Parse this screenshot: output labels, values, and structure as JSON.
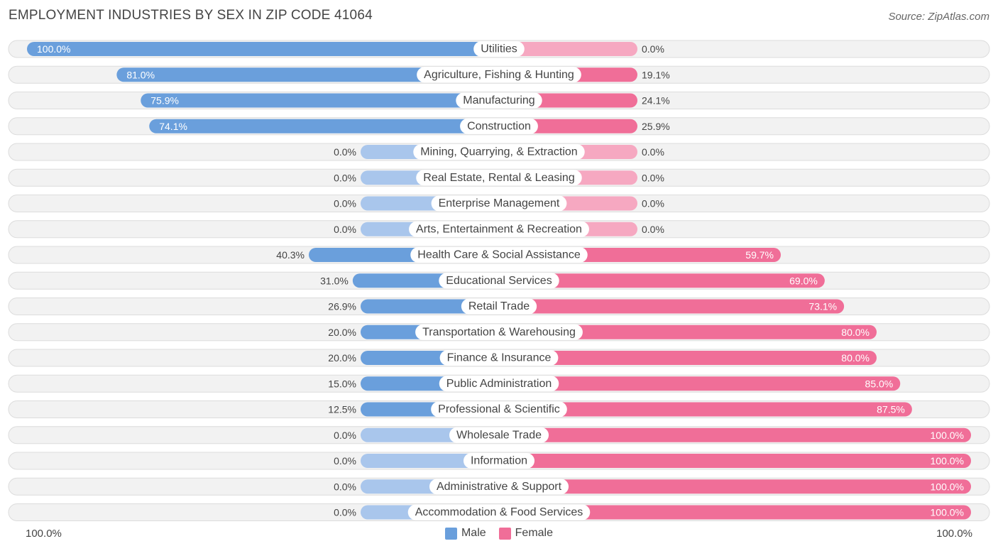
{
  "header": {
    "title": "EMPLOYMENT INDUSTRIES BY SEX IN ZIP CODE 41064",
    "source": "Source: ZipAtlas.com"
  },
  "axis": {
    "left_label": "100.0%",
    "right_label": "100.0%"
  },
  "legend": {
    "male_label": "Male",
    "female_label": "Female"
  },
  "colors": {
    "male": "#6a9fdc",
    "male_light": "#a9c6ec",
    "female": "#f06e98",
    "female_light": "#f6a8c1",
    "row_bg": "#f2f2f2",
    "row_border": "#dcdcdc"
  },
  "chart_data": {
    "type": "bar",
    "orientation": "horizontal-diverging",
    "title": "EMPLOYMENT INDUSTRIES BY SEX IN ZIP CODE 41064",
    "xlim": [
      -100,
      100
    ],
    "series": [
      {
        "name": "Male",
        "values": [
          100.0,
          81.0,
          75.9,
          74.1,
          0.0,
          0.0,
          0.0,
          0.0,
          40.3,
          31.0,
          26.9,
          20.0,
          20.0,
          15.0,
          12.5,
          0.0,
          0.0,
          0.0,
          0.0
        ]
      },
      {
        "name": "Female",
        "values": [
          0.0,
          19.1,
          24.1,
          25.9,
          0.0,
          0.0,
          0.0,
          0.0,
          59.7,
          69.0,
          73.1,
          80.0,
          80.0,
          85.0,
          87.5,
          100.0,
          100.0,
          100.0,
          100.0
        ]
      }
    ],
    "categories": [
      "Utilities",
      "Agriculture, Fishing & Hunting",
      "Manufacturing",
      "Construction",
      "Mining, Quarrying, & Extraction",
      "Real Estate, Rental & Leasing",
      "Enterprise Management",
      "Arts, Entertainment & Recreation",
      "Health Care & Social Assistance",
      "Educational Services",
      "Retail Trade",
      "Transportation & Warehousing",
      "Finance & Insurance",
      "Public Administration",
      "Professional & Scientific",
      "Wholesale Trade",
      "Information",
      "Administrative & Support",
      "Accommodation & Food Services"
    ],
    "male_labels": [
      "100.0%",
      "81.0%",
      "75.9%",
      "74.1%",
      "0.0%",
      "0.0%",
      "0.0%",
      "0.0%",
      "40.3%",
      "31.0%",
      "26.9%",
      "20.0%",
      "20.0%",
      "15.0%",
      "12.5%",
      "0.0%",
      "0.0%",
      "0.0%",
      "0.0%"
    ],
    "female_labels": [
      "0.0%",
      "19.1%",
      "24.1%",
      "25.9%",
      "0.0%",
      "0.0%",
      "0.0%",
      "0.0%",
      "59.7%",
      "69.0%",
      "73.1%",
      "80.0%",
      "80.0%",
      "85.0%",
      "87.5%",
      "100.0%",
      "100.0%",
      "100.0%",
      "100.0%"
    ]
  }
}
